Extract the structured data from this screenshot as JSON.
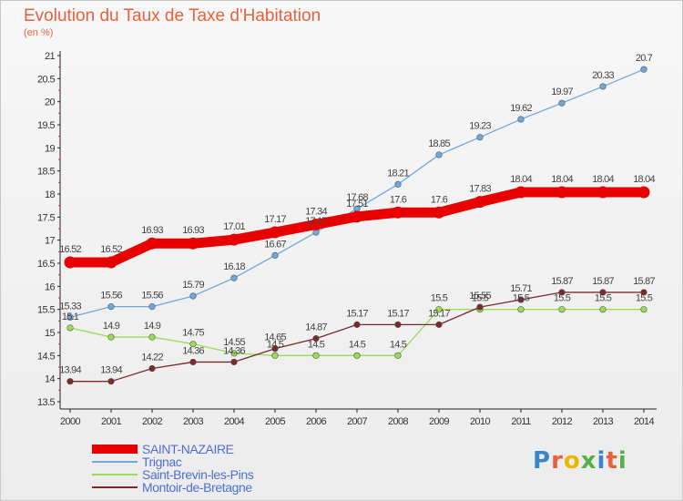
{
  "header": {
    "title": "Evolution du Taux de Taxe d'Habitation",
    "subtitle": "(en %)"
  },
  "chart_data": {
    "type": "line",
    "title": "Evolution du Taux de Taxe d'Habitation",
    "subtitle": "(en %)",
    "xlabel": "",
    "ylabel": "",
    "x": [
      2000,
      2001,
      2002,
      2003,
      2004,
      2005,
      2006,
      2007,
      2008,
      2009,
      2010,
      2011,
      2012,
      2013,
      2014
    ],
    "ylim": [
      13.5,
      21
    ],
    "yticks": [
      "13.5",
      "14",
      "14.5",
      "15",
      "15.5",
      "16",
      "16.5",
      "17",
      "17.5",
      "18",
      "18.5",
      "19",
      "19.5",
      "20",
      "20.5",
      "21"
    ],
    "grid": false,
    "legend": "bottom-left",
    "series": [
      {
        "name": "SAINT-NAZAIRE",
        "color": "#e80000",
        "values": [
          16.52,
          16.52,
          16.93,
          16.93,
          17.01,
          17.17,
          17.34,
          17.51,
          17.6,
          17.6,
          17.83,
          18.04,
          18.04,
          18.04,
          18.04
        ],
        "labels": [
          "16.52",
          "16.52",
          "16.93",
          "16.93",
          "17.01",
          "17.17",
          "17.34",
          "17.51",
          "17.6",
          "17.6",
          "17.83",
          "18.04",
          "18.04",
          "18.04",
          "18.04"
        ]
      },
      {
        "name": "Trignac",
        "color": "#6fa8dc",
        "values": [
          15.33,
          15.56,
          15.56,
          15.79,
          16.18,
          16.67,
          17.17,
          17.68,
          18.21,
          18.85,
          19.23,
          19.62,
          19.97,
          20.33,
          20.7
        ],
        "labels": [
          "15.33",
          "15.56",
          "15.56",
          "15.79",
          "16.18",
          "16.67",
          "17.17",
          "17.68",
          "18.21",
          "18.85",
          "19.23",
          "19.62",
          "19.97",
          "20.33",
          "20.7"
        ]
      },
      {
        "name": "Saint-Brevin-les-Pins",
        "color": "#99dd55",
        "values": [
          15.1,
          14.9,
          14.9,
          14.75,
          14.55,
          14.5,
          14.5,
          14.5,
          14.5,
          15.5,
          15.5,
          15.5,
          15.5,
          15.5,
          15.5
        ],
        "labels": [
          "15.1",
          "14.9",
          "14.9",
          "14.75",
          "14.55",
          "14.5",
          "14.5",
          "14.5",
          "14.5",
          "15.5",
          "15.5",
          "15.5",
          "15.5",
          "15.5",
          "15.5"
        ]
      },
      {
        "name": "Montoir-de-Bretagne",
        "color": "#7a2a2a",
        "values": [
          13.94,
          13.94,
          14.22,
          14.36,
          14.36,
          14.65,
          14.87,
          15.17,
          15.17,
          15.17,
          15.55,
          15.71,
          15.87,
          15.87,
          15.87
        ],
        "labels": [
          "13.94",
          "13.94",
          "14.22",
          "14.36",
          "14.36",
          "14.65",
          "14.87",
          "15.17",
          "15.17",
          "15.17",
          "15.55",
          "15.71",
          "15.87",
          "15.87",
          "15.87"
        ]
      }
    ]
  },
  "branding": {
    "logo_text": "Proxiti",
    "logo_colors": [
      "#3a86c8",
      "#e8603c",
      "#e8b800",
      "#56b046",
      "#3a86c8",
      "#e8603c",
      "#56b046"
    ]
  }
}
